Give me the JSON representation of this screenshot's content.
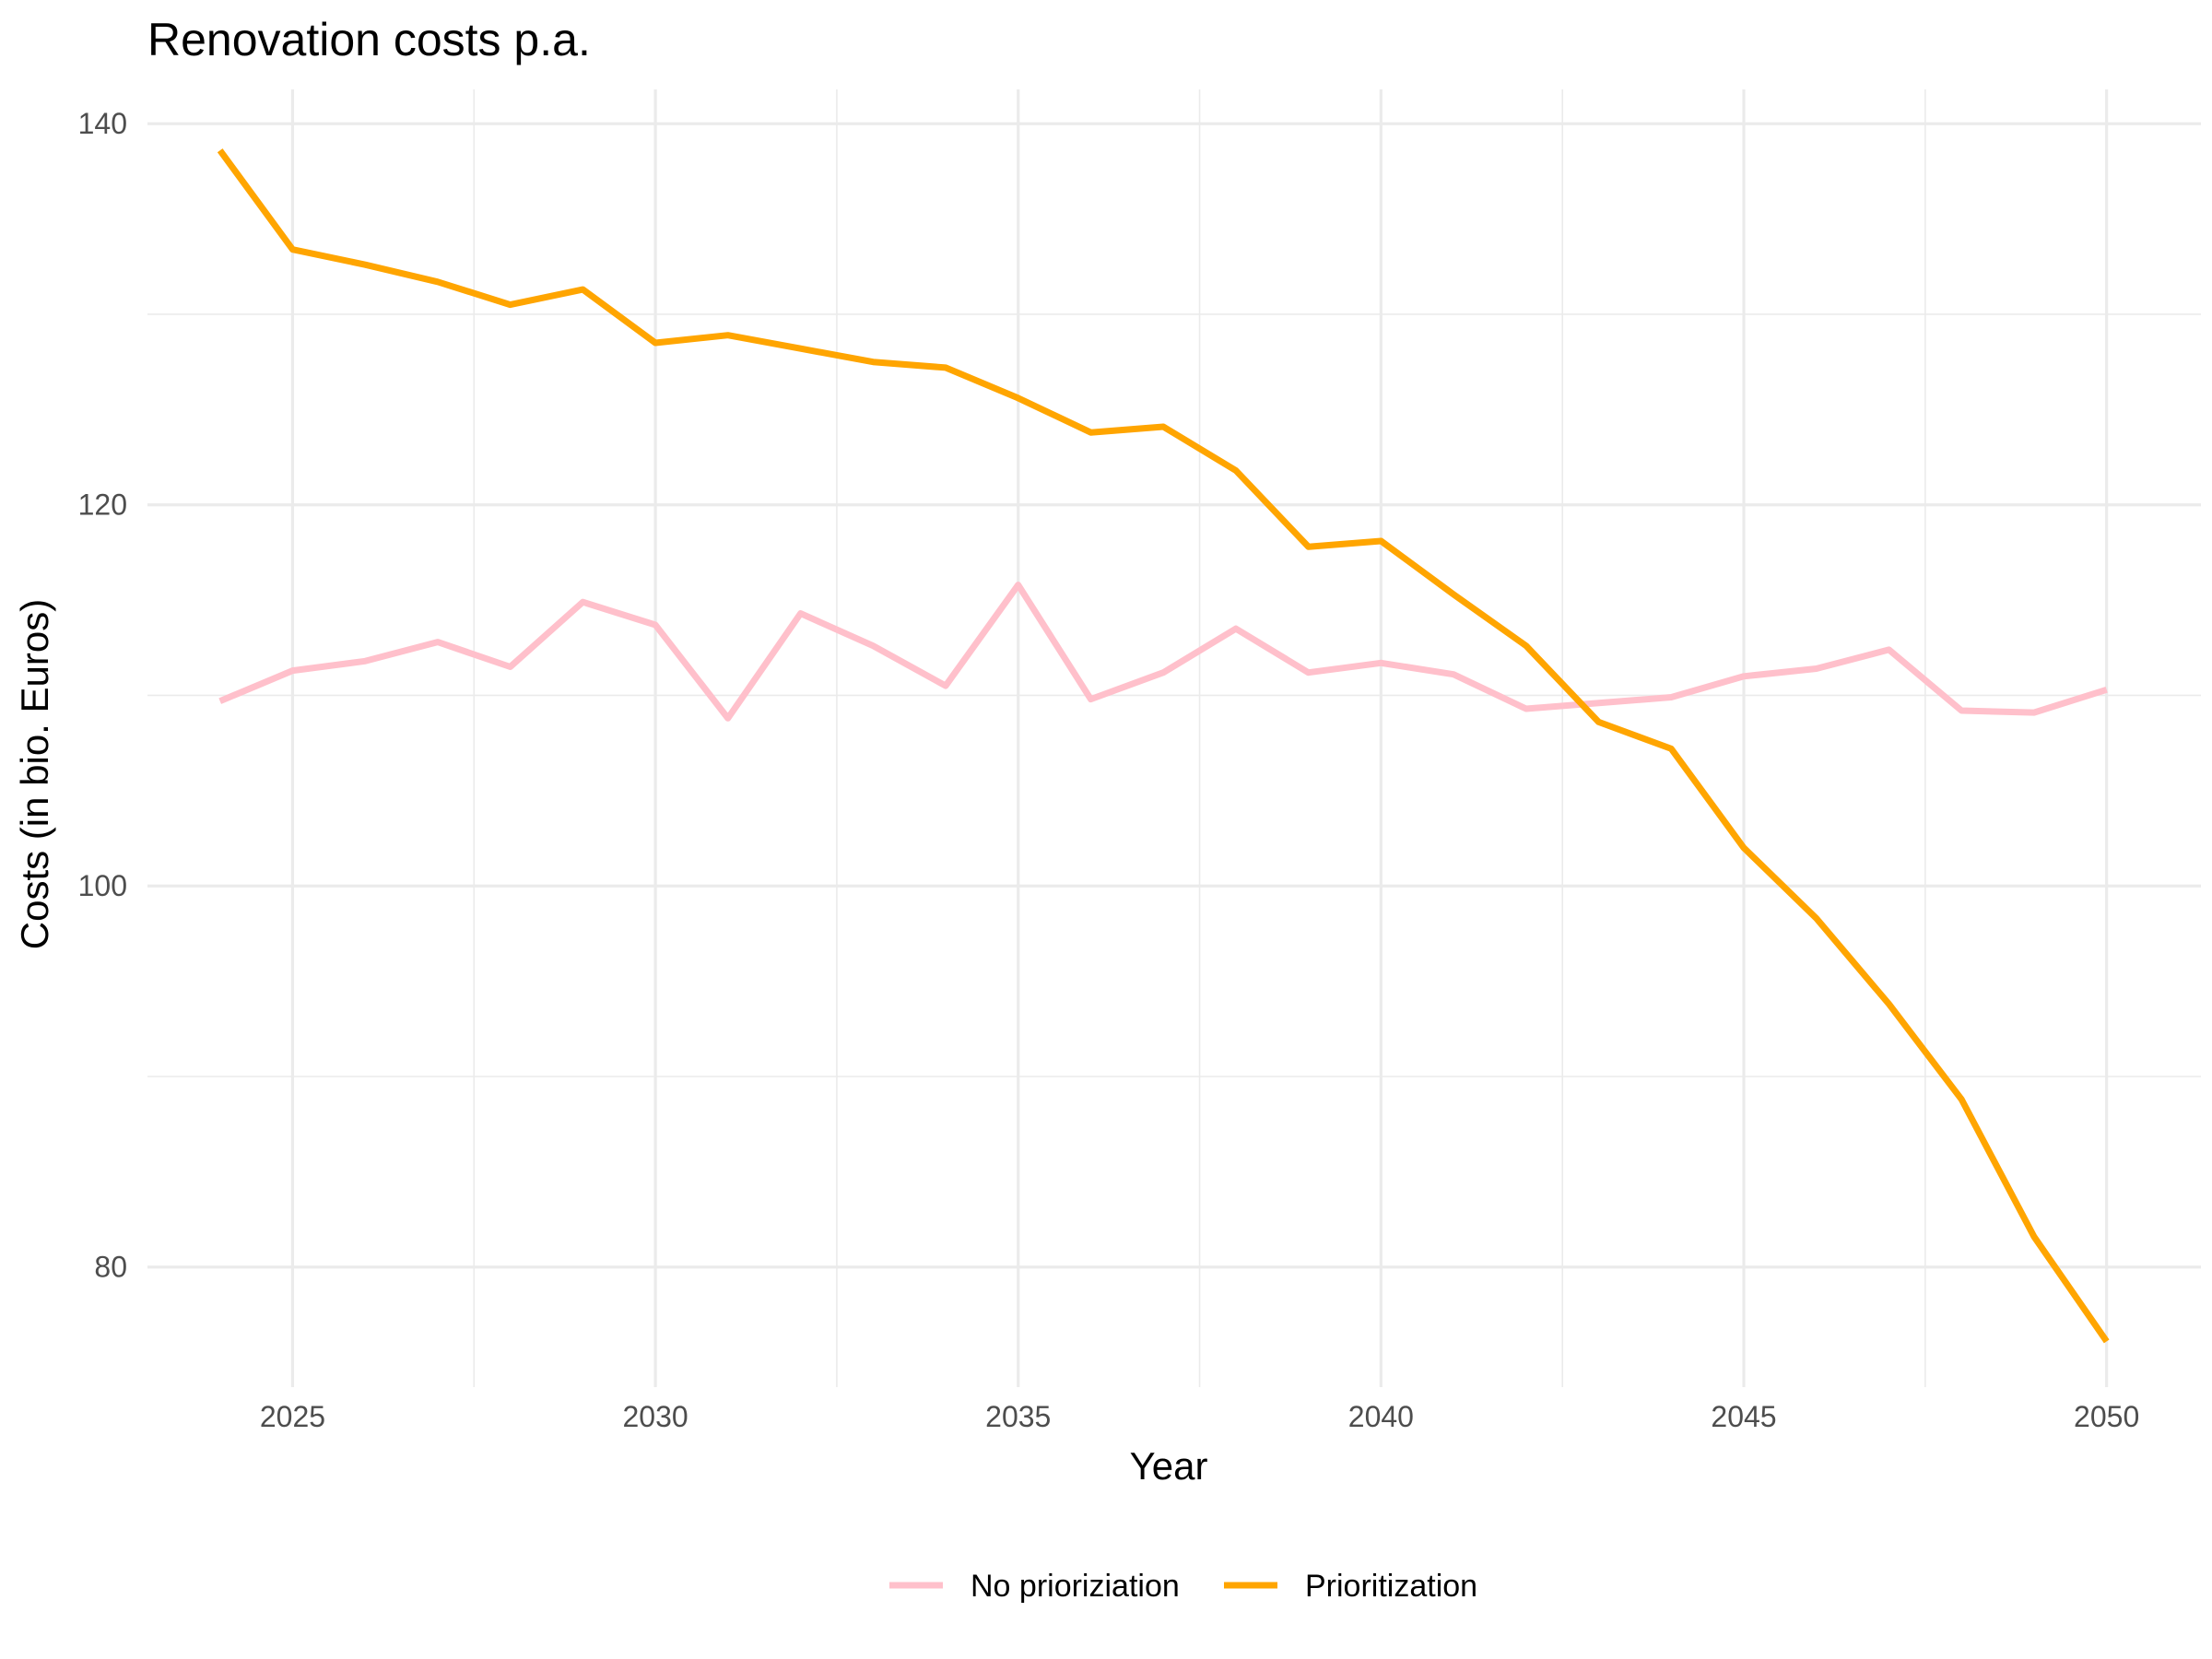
{
  "chart_data": {
    "type": "line",
    "title": "Renovation costs p.a.",
    "xlabel": "Year",
    "ylabel": "Costs (in bio. Euros)",
    "xlim": [
      2023.0,
      2051.3
    ],
    "ylim": [
      73.7,
      141.8
    ],
    "x_ticks": [
      2025,
      2030,
      2035,
      2040,
      2045,
      2050
    ],
    "x_minor_ticks": [
      2027.5,
      2032.5,
      2037.5,
      2042.5,
      2047.5
    ],
    "y_ticks": [
      80,
      100,
      120,
      140
    ],
    "y_minor_ticks": [
      90,
      110,
      130
    ],
    "grid": true,
    "legend_position": "bottom",
    "x": [
      2024,
      2025,
      2026,
      2027,
      2028,
      2029,
      2030,
      2031,
      2032,
      2033,
      2034,
      2035,
      2036,
      2037,
      2038,
      2039,
      2040,
      2041,
      2042,
      2043,
      2044,
      2045,
      2046,
      2047,
      2048,
      2049,
      2050
    ],
    "series": [
      {
        "name": "No prioriziation",
        "color": "#FFC0CB",
        "values": [
          109.7,
          111.3,
          111.8,
          112.8,
          111.5,
          114.9,
          113.7,
          108.8,
          114.3,
          112.6,
          110.5,
          115.8,
          109.8,
          111.2,
          113.5,
          111.2,
          111.7,
          111.1,
          109.3,
          109.6,
          109.9,
          111.0,
          111.4,
          112.4,
          109.2,
          109.1,
          110.3
        ]
      },
      {
        "name": "Prioritization",
        "color": "#FFA500",
        "values": [
          138.6,
          133.4,
          132.6,
          131.7,
          130.5,
          131.3,
          128.5,
          128.9,
          128.2,
          127.5,
          127.2,
          125.6,
          123.8,
          124.1,
          121.8,
          117.8,
          118.1,
          115.3,
          112.6,
          108.6,
          107.2,
          102.0,
          98.3,
          93.8,
          88.8,
          81.6,
          76.1
        ]
      }
    ]
  }
}
